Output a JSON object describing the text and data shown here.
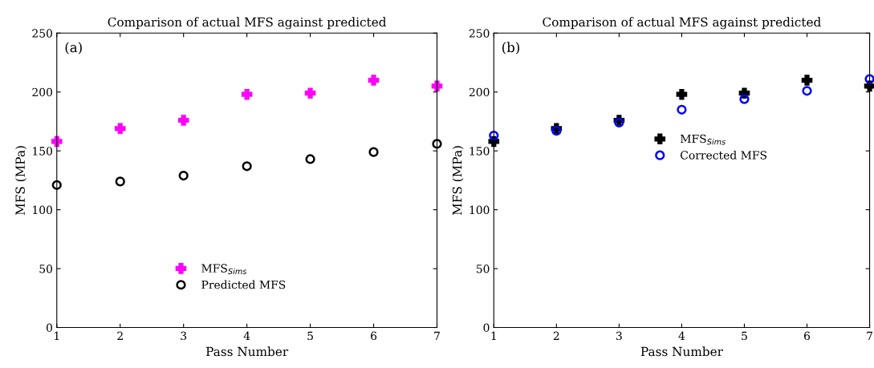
{
  "chart_data": [
    {
      "type": "scatter",
      "title": "Comparison of actual MFS against predicted",
      "xlabel": "Pass Number",
      "ylabel": "MFS (MPa)",
      "annotations": [
        "(a)"
      ],
      "x": [
        1,
        2,
        3,
        4,
        5,
        6,
        7
      ],
      "xlim": [
        1,
        7
      ],
      "xticks": [
        1,
        2,
        3,
        4,
        5,
        6,
        7
      ],
      "ylim": [
        0,
        250
      ],
      "yticks": [
        0,
        50,
        100,
        150,
        200,
        250
      ],
      "grid": false,
      "legend": "bottom",
      "series": [
        {
          "name": "MFS$_{Sims}$",
          "color": "#ff00ff",
          "marker": "cross",
          "values": [
            158,
            169,
            176,
            198,
            199,
            210,
            205
          ]
        },
        {
          "name": "Predicted MFS",
          "color": "#000000",
          "marker": "circle",
          "values": [
            121,
            124,
            129,
            137,
            143,
            149,
            156
          ]
        }
      ]
    },
    {
      "type": "scatter",
      "title": "Comparison of actual MFS against predicted",
      "xlabel": "Pass Number",
      "ylabel": "MFS (MPa)",
      "annotations": [
        "(b)"
      ],
      "x": [
        1,
        2,
        3,
        4,
        5,
        6,
        7
      ],
      "xlim": [
        1,
        7
      ],
      "xticks": [
        1,
        2,
        3,
        4,
        5,
        6,
        7
      ],
      "ylim": [
        0,
        250
      ],
      "yticks": [
        0,
        50,
        100,
        150,
        200,
        250
      ],
      "grid": false,
      "legend": "center",
      "series": [
        {
          "name": "MFS$_{Sims}$",
          "color": "#000000",
          "marker": "cross",
          "values": [
            158,
            169,
            176,
            198,
            199,
            210,
            205
          ]
        },
        {
          "name": "Corrected MFS",
          "color": "#0000ff",
          "marker": "circle",
          "values": [
            163,
            167,
            174,
            185,
            194,
            201,
            211
          ]
        }
      ]
    }
  ]
}
